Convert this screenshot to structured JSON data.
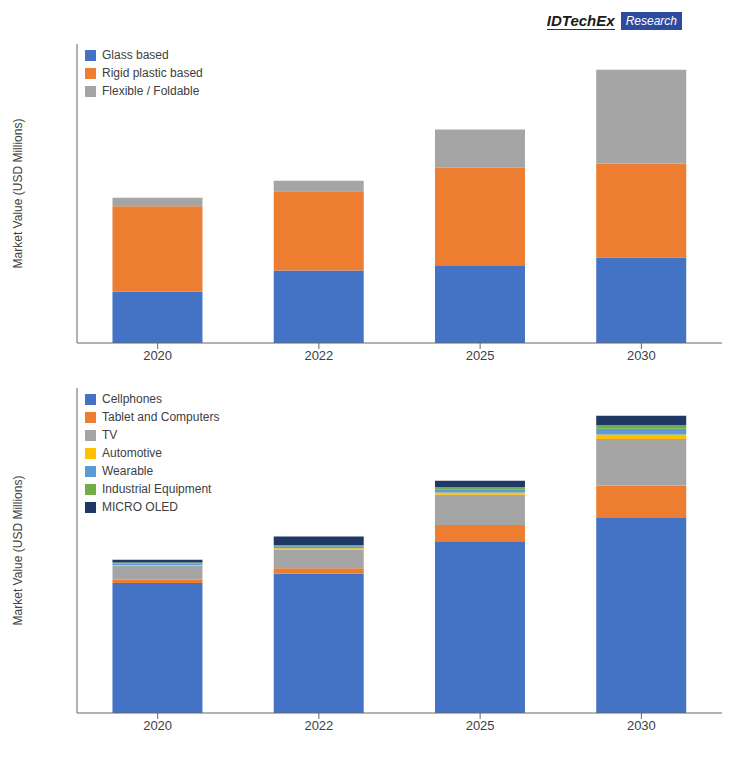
{
  "chart_data": [
    {
      "type": "bar",
      "ylabel": "Market Value (USD Millions)",
      "categories": [
        "2020",
        "2022",
        "2025",
        "2030"
      ],
      "series": [
        {
          "name": "Glass based",
          "color": "#4472C4",
          "values": [
            12000,
            17000,
            18000,
            20000
          ]
        },
        {
          "name": "Rigid plastic based",
          "color": "#ED7D31",
          "values": [
            20000,
            18500,
            23000,
            22000
          ]
        },
        {
          "name": "Flexible / Foldable",
          "color": "#A5A5A5",
          "values": [
            2000,
            2500,
            9000,
            22000
          ]
        }
      ],
      "ylim": [
        0,
        70000
      ],
      "stacked": true,
      "grid": false,
      "legend": "upper left",
      "tick_labels": "x",
      "annotations": [
        "IDTechEx",
        "Research"
      ]
    },
    {
      "type": "bar",
      "ylabel": "Market Value (USD Millions)",
      "categories": [
        "2020",
        "2022",
        "2025",
        "2030"
      ],
      "series": [
        {
          "name": "Cellphones",
          "color": "#4472C4",
          "values": [
            28000,
            30000,
            37000,
            42000
          ]
        },
        {
          "name": "Tablet and Computers",
          "color": "#ED7D31",
          "values": [
            700,
            1200,
            3500,
            7000
          ]
        },
        {
          "name": "TV",
          "color": "#A5A5A5",
          "values": [
            3000,
            4000,
            6500,
            10000
          ]
        },
        {
          "name": "Automotive",
          "color": "#FFC000",
          "values": [
            200,
            300,
            500,
            1000
          ]
        },
        {
          "name": "Wearable",
          "color": "#5B9BD5",
          "values": [
            300,
            400,
            700,
            1200
          ]
        },
        {
          "name": "Industrial Equipment",
          "color": "#70AD47",
          "values": [
            200,
            300,
            500,
            800
          ]
        },
        {
          "name": "MICRO OLED",
          "color": "#1F3864",
          "values": [
            600,
            1800,
            1300,
            2000
          ]
        }
      ],
      "ylim": [
        0,
        70000
      ],
      "stacked": true,
      "grid": false,
      "legend": "upper left",
      "tick_labels": "x"
    }
  ]
}
